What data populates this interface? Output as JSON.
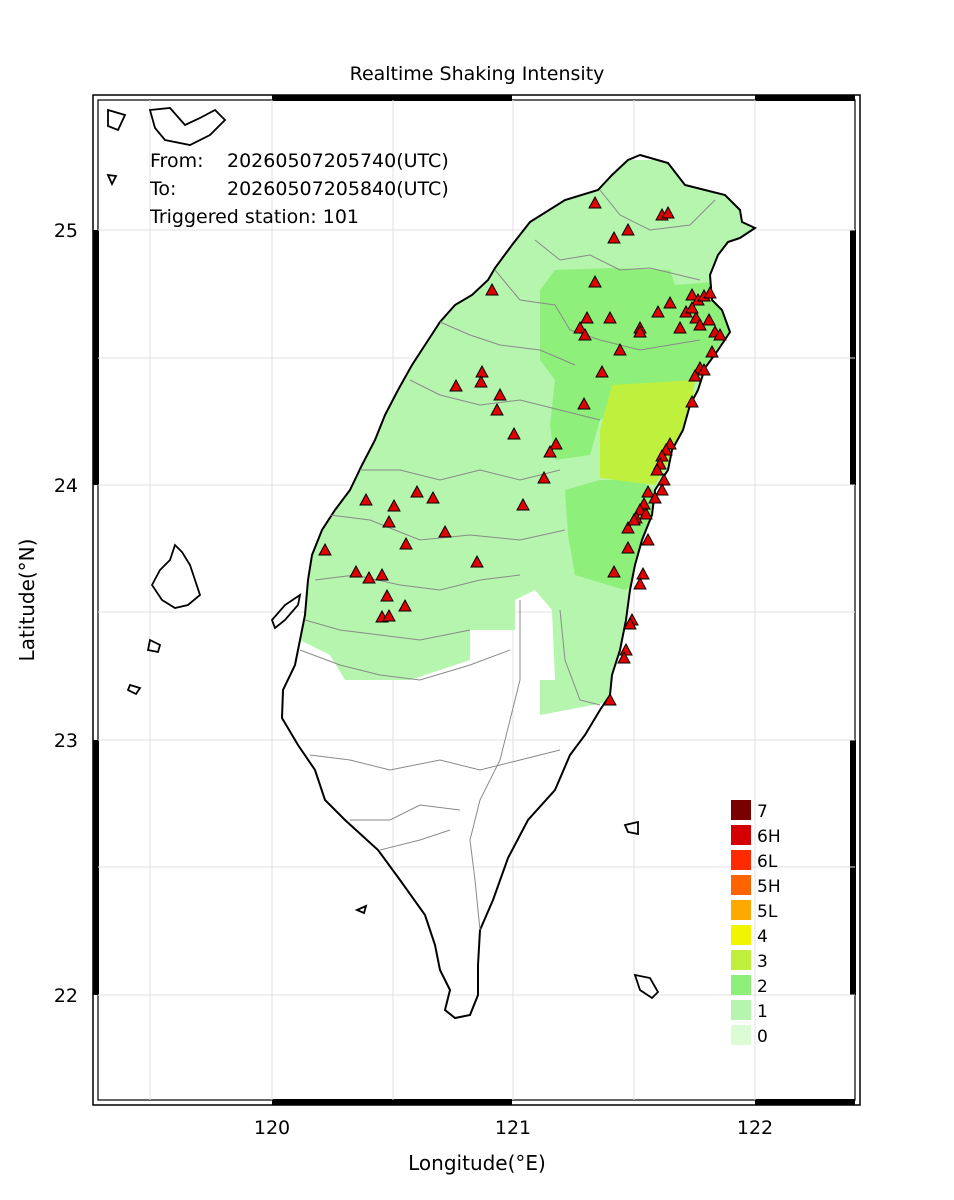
{
  "title": "Realtime Shaking Intensity",
  "info": {
    "from_label": "From:",
    "from_value": "20260507205740(UTC)",
    "to_label": "To:",
    "to_value": "20260507205840(UTC)",
    "triggered": "Triggered station: 101"
  },
  "axes": {
    "xlabel": "Longitude(°E)",
    "ylabel": "Latitude(°N)",
    "x_ticks": [
      "120",
      "121",
      "122"
    ],
    "y_ticks": [
      "25",
      "24",
      "23",
      "22"
    ]
  },
  "legend": {
    "items": [
      {
        "label": "7",
        "color": "#7a0000"
      },
      {
        "label": "6H",
        "color": "#d40000"
      },
      {
        "label": "6L",
        "color": "#ff2a00"
      },
      {
        "label": "5H",
        "color": "#ff6400"
      },
      {
        "label": "5L",
        "color": "#ffa800"
      },
      {
        "label": "4",
        "color": "#f2f500"
      },
      {
        "label": "3",
        "color": "#bff03e"
      },
      {
        "label": "2",
        "color": "#8ef07a"
      },
      {
        "label": "1",
        "color": "#b5f5ad"
      },
      {
        "label": "0",
        "color": "#dcfcd6"
      }
    ]
  },
  "colors": {
    "station_fill": "#e00000",
    "coast": "#000000",
    "county": "#8a8a8a",
    "grid": "#e0e0e0"
  }
}
